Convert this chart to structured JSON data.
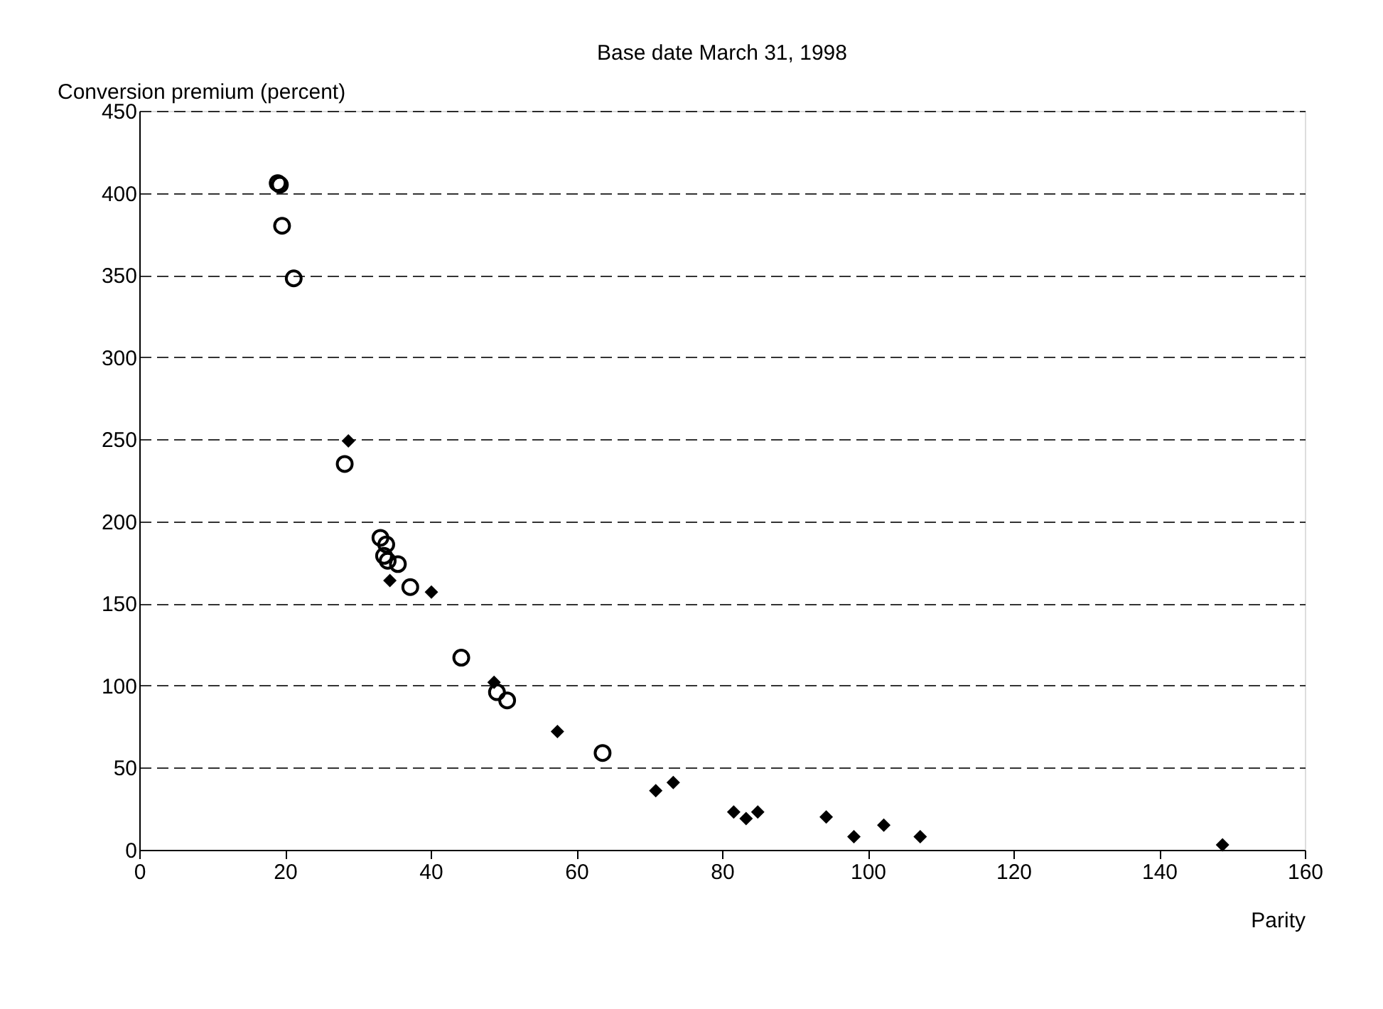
{
  "chart_data": {
    "type": "scatter",
    "title": "Base date March 31, 1998",
    "xlabel": "Parity",
    "ylabel": "Conversion premium (percent)",
    "xlim": [
      0,
      160
    ],
    "xticks": [
      0,
      20,
      40,
      60,
      80,
      100,
      120,
      140,
      160
    ],
    "ylim": [
      0,
      450
    ],
    "yticks": [
      0,
      50,
      100,
      150,
      200,
      250,
      300,
      350,
      400,
      450
    ],
    "grid": "y",
    "series": [
      {
        "color": "#000000",
        "marker": "circle",
        "x": [
          19.0,
          19.3,
          19.6,
          21.2,
          28.2,
          33.1,
          33.9,
          33.6,
          34.1,
          35.5,
          37.2,
          44.2,
          49.1,
          50.5,
          63.6
        ],
        "values": [
          406,
          405,
          380,
          348,
          235,
          190,
          186,
          179,
          176,
          174,
          160,
          117,
          96,
          91,
          59
        ]
      },
      {
        "color": "#000000",
        "marker": "diamond",
        "x": [
          28.7,
          34.4,
          40.1,
          48.7,
          57.4,
          70.9,
          73.3,
          81.6,
          83.3,
          84.9,
          94.3,
          98.1,
          102.2,
          107.2,
          148.7
        ],
        "values": [
          249,
          164,
          157,
          102,
          72,
          36,
          41,
          23,
          19,
          23,
          20,
          8,
          15,
          8,
          3
        ]
      }
    ]
  }
}
